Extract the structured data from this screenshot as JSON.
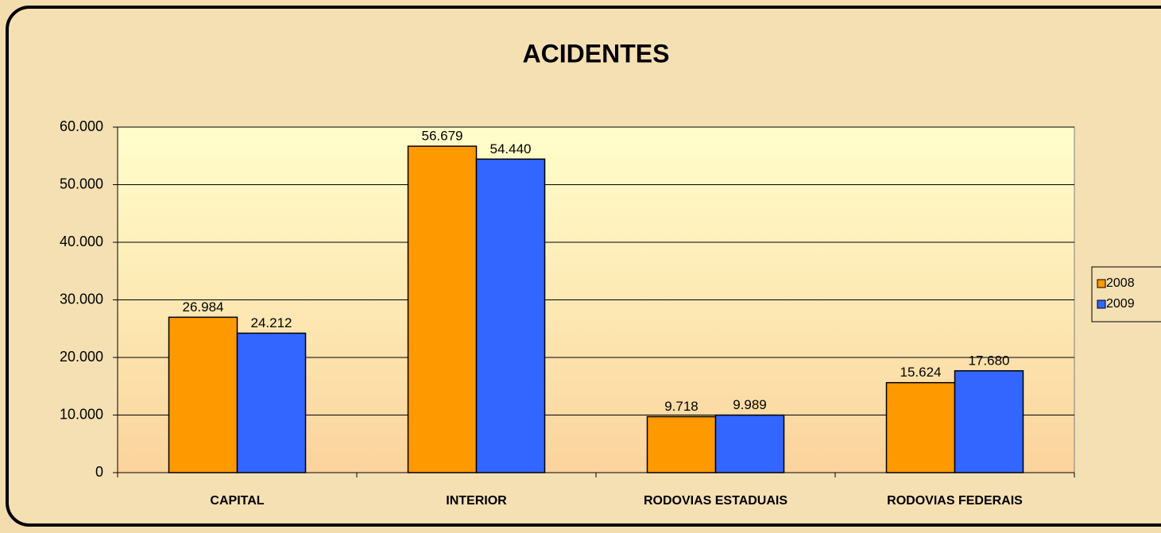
{
  "chart_data": {
    "type": "bar",
    "title": "ACIDENTES",
    "categories": [
      "CAPITAL",
      "INTERIOR",
      "RODOVIAS ESTADUAIS",
      "RODOVIAS FEDERAIS"
    ],
    "series": [
      {
        "name": "2008",
        "color": "#ff9900",
        "values": [
          26984,
          56679,
          9718,
          15624
        ],
        "value_labels": [
          "26.984",
          "56.679",
          "9.718",
          "15.624"
        ]
      },
      {
        "name": "2009",
        "color": "#3366ff",
        "values": [
          24212,
          54440,
          9989,
          17680
        ],
        "value_labels": [
          "24.212",
          "54.440",
          "9.989",
          "17.680"
        ]
      }
    ],
    "ylim": [
      0,
      60000
    ],
    "yticks": [
      {
        "value": 0,
        "label": "0"
      },
      {
        "value": 10000,
        "label": "10.000"
      },
      {
        "value": 20000,
        "label": "20.000"
      },
      {
        "value": 30000,
        "label": "30.000"
      },
      {
        "value": 40000,
        "label": "40.000"
      },
      {
        "value": 50000,
        "label": "50.000"
      },
      {
        "value": 60000,
        "label": "60.000"
      }
    ],
    "grid": true,
    "legend": "right"
  }
}
